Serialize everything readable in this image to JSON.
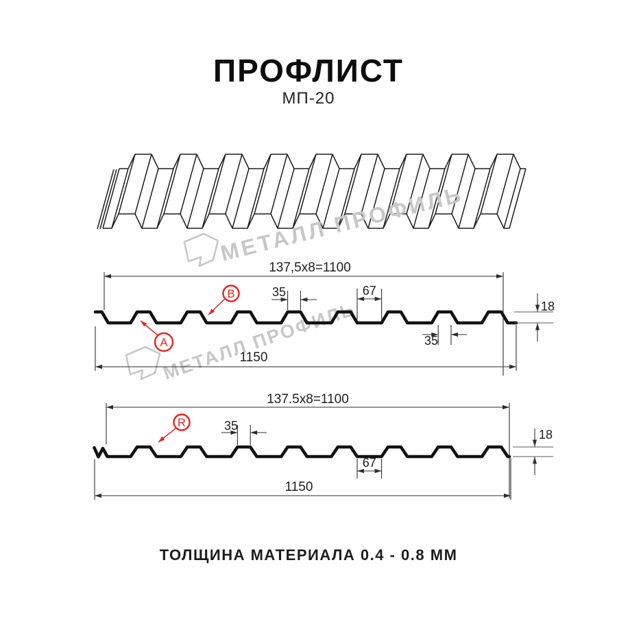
{
  "header": {
    "title": "ПРОФЛИСТ",
    "subtitle": "МП-20"
  },
  "watermark": {
    "brand": "МЕТАЛЛ ПРОФИЛЬ"
  },
  "footer": {
    "note": "ТОЛЩИНА МАТЕРИАЛА 0.4 - 0.8 ММ"
  },
  "colors": {
    "ink": "#1a1a1a",
    "red": "#e8231f",
    "watermark": "#c7c7c7"
  },
  "diagram": {
    "profile_name": "МП-20",
    "sections": [
      {
        "id": "front-view",
        "pitch_label": "137,5x8=1100",
        "overall_label": "1150",
        "rib_top_label": "35",
        "valley_label": "67",
        "height_label": "18",
        "rib_bottom_label": "35",
        "point_labels": [
          "A",
          "B"
        ]
      },
      {
        "id": "reverse-view",
        "pitch_label": "137.5x8=1100",
        "overall_label": "1150",
        "rib_top_label": "35",
        "valley_label": "67",
        "height_label": "18",
        "point_labels": [
          "R"
        ]
      }
    ]
  }
}
